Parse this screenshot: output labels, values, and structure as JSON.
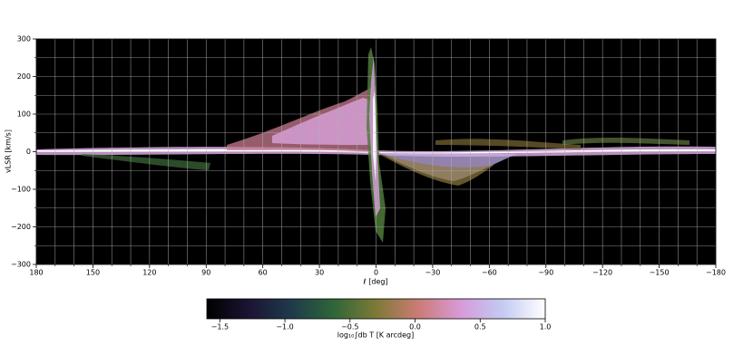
{
  "chart_data": {
    "type": "heatmap",
    "xlabel": "ℓ [deg]",
    "ylabel": "vLSR [km/s]",
    "xlim": [
      180,
      -180
    ],
    "ylim": [
      -300,
      300
    ],
    "xticks": [
      180,
      150,
      120,
      90,
      60,
      30,
      0,
      {
        "value": -30,
        "label": "−30"
      },
      {
        "value": -60,
        "label": "−60"
      },
      {
        "value": -90,
        "label": "−90"
      },
      {
        "value": -120,
        "label": "−120"
      },
      {
        "value": -150,
        "label": "−150"
      },
      {
        "value": -180,
        "label": "−180"
      }
    ],
    "yticks": [
      {
        "value": -300,
        "label": "−300"
      },
      {
        "value": -200,
        "label": "−200"
      },
      {
        "value": -100,
        "label": "−100"
      },
      0,
      100,
      200,
      300
    ],
    "x_minor_ticks": [
      170,
      160,
      140,
      130,
      110,
      100,
      80,
      70,
      50,
      40,
      20,
      10,
      -10,
      -20,
      -40,
      -50,
      -70,
      -80,
      -100,
      -110,
      -130,
      -140,
      -160,
      -170
    ],
    "y_minor_ticks": [
      -250,
      -150,
      -50,
      50,
      150,
      250
    ],
    "grid": true,
    "colorbar": {
      "label": "log₁₀∫db T [K arcdeg]",
      "lim": [
        -1.6,
        1.0
      ],
      "ticks": [
        {
          "value": -1.5,
          "label": "−1.5"
        },
        {
          "value": -1.0,
          "label": "−1.0"
        },
        {
          "value": -0.5,
          "label": "−0.5"
        },
        {
          "value": 0.0,
          "label": "0.0"
        },
        0.5,
        {
          "value": 1.0,
          "label": "1.0"
        }
      ],
      "colormap": [
        "#000000",
        "#1c1433",
        "#1e3a4c",
        "#2f6638",
        "#7d7a36",
        "#cc7b76",
        "#d79ad8",
        "#c3cbf2",
        "#ffffff"
      ]
    }
  }
}
